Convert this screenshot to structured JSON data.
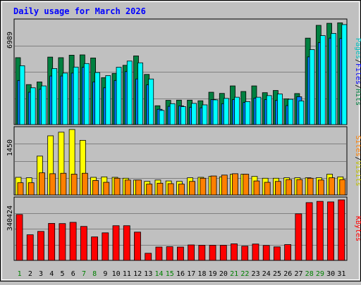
{
  "chart_data": [
    {
      "type": "bar",
      "title": "Daily usage for March 2026",
      "categories": [
        "1",
        "2",
        "3",
        "4",
        "5",
        "6",
        "7",
        "8",
        "9",
        "10",
        "11",
        "12",
        "13",
        "14",
        "15",
        "16",
        "17",
        "18",
        "19",
        "20",
        "21",
        "22",
        "23",
        "24",
        "25",
        "26",
        "27",
        "28",
        "29",
        "30",
        "31"
      ],
      "weekend_days": [
        "1",
        "7",
        "8",
        "14",
        "15",
        "21",
        "22",
        "28",
        "29"
      ],
      "ylabel_right": [
        "Pages",
        "Files",
        "Hits"
      ],
      "ymax_label": "6989",
      "ylim": [
        0,
        6989
      ],
      "series": [
        {
          "name": "Hits",
          "color": "#008040",
          "values": [
            4550,
            2720,
            2900,
            4590,
            4550,
            4720,
            4740,
            4530,
            3190,
            3480,
            4030,
            4670,
            3410,
            1280,
            1650,
            1660,
            1660,
            1620,
            2200,
            2120,
            2630,
            2250,
            2630,
            2170,
            2320,
            1750,
            2110,
            5880,
            6750,
            6890,
            6920
          ]
        },
        {
          "name": "Files",
          "color": "#0080ff",
          "values": [
            3000,
            2200,
            2400,
            3300,
            3300,
            3500,
            3900,
            2900,
            2500,
            3000,
            3600,
            3100,
            2700,
            1040,
            1240,
            1270,
            1170,
            1140,
            1700,
            1420,
            1700,
            1500,
            1800,
            1700,
            1640,
            1290,
            1890,
            4600,
            5570,
            5880,
            5850
          ]
        },
        {
          "name": "Pages",
          "color": "#00ffff",
          "values": [
            4000,
            2500,
            2630,
            3810,
            3500,
            3910,
            4150,
            3540,
            3330,
            3900,
            4320,
            4200,
            3100,
            960,
            1420,
            1220,
            1440,
            1340,
            1680,
            1780,
            1860,
            1560,
            1860,
            1970,
            2080,
            1720,
            1610,
            5100,
            6050,
            6200,
            6800
          ]
        }
      ]
    },
    {
      "type": "bar",
      "ylabel_right": [
        "Sites",
        "Visits"
      ],
      "ymax_label": "1450",
      "ylim": [
        0,
        1450
      ],
      "series": [
        {
          "name": "Visits",
          "color": "#ffff00",
          "values": [
            390,
            380,
            860,
            1310,
            1390,
            1450,
            1210,
            390,
            400,
            390,
            370,
            330,
            300,
            330,
            310,
            300,
            380,
            390,
            410,
            400,
            460,
            460,
            410,
            370,
            370,
            380,
            380,
            380,
            380,
            460,
            400
          ]
        },
        {
          "name": "Sites",
          "color": "#ff8000",
          "values": [
            270,
            270,
            490,
            470,
            480,
            460,
            480,
            320,
            280,
            370,
            330,
            330,
            240,
            260,
            250,
            240,
            300,
            370,
            420,
            440,
            470,
            460,
            310,
            280,
            300,
            340,
            340,
            370,
            330,
            380,
            340
          ]
        }
      ]
    },
    {
      "type": "bar",
      "ylabel_right": [
        "KBytes"
      ],
      "ymax_label": "340424",
      "ylim": [
        0,
        340424
      ],
      "series": [
        {
          "name": "KBytes",
          "color": "#ff0000",
          "values": [
            258000,
            144000,
            163000,
            208000,
            207000,
            214000,
            191000,
            132000,
            155000,
            195000,
            195000,
            159000,
            40000,
            75000,
            77000,
            75000,
            87000,
            85000,
            85000,
            85000,
            93000,
            80000,
            92000,
            84000,
            76000,
            89000,
            262000,
            325000,
            332000,
            329000,
            340424
          ]
        }
      ]
    }
  ]
}
